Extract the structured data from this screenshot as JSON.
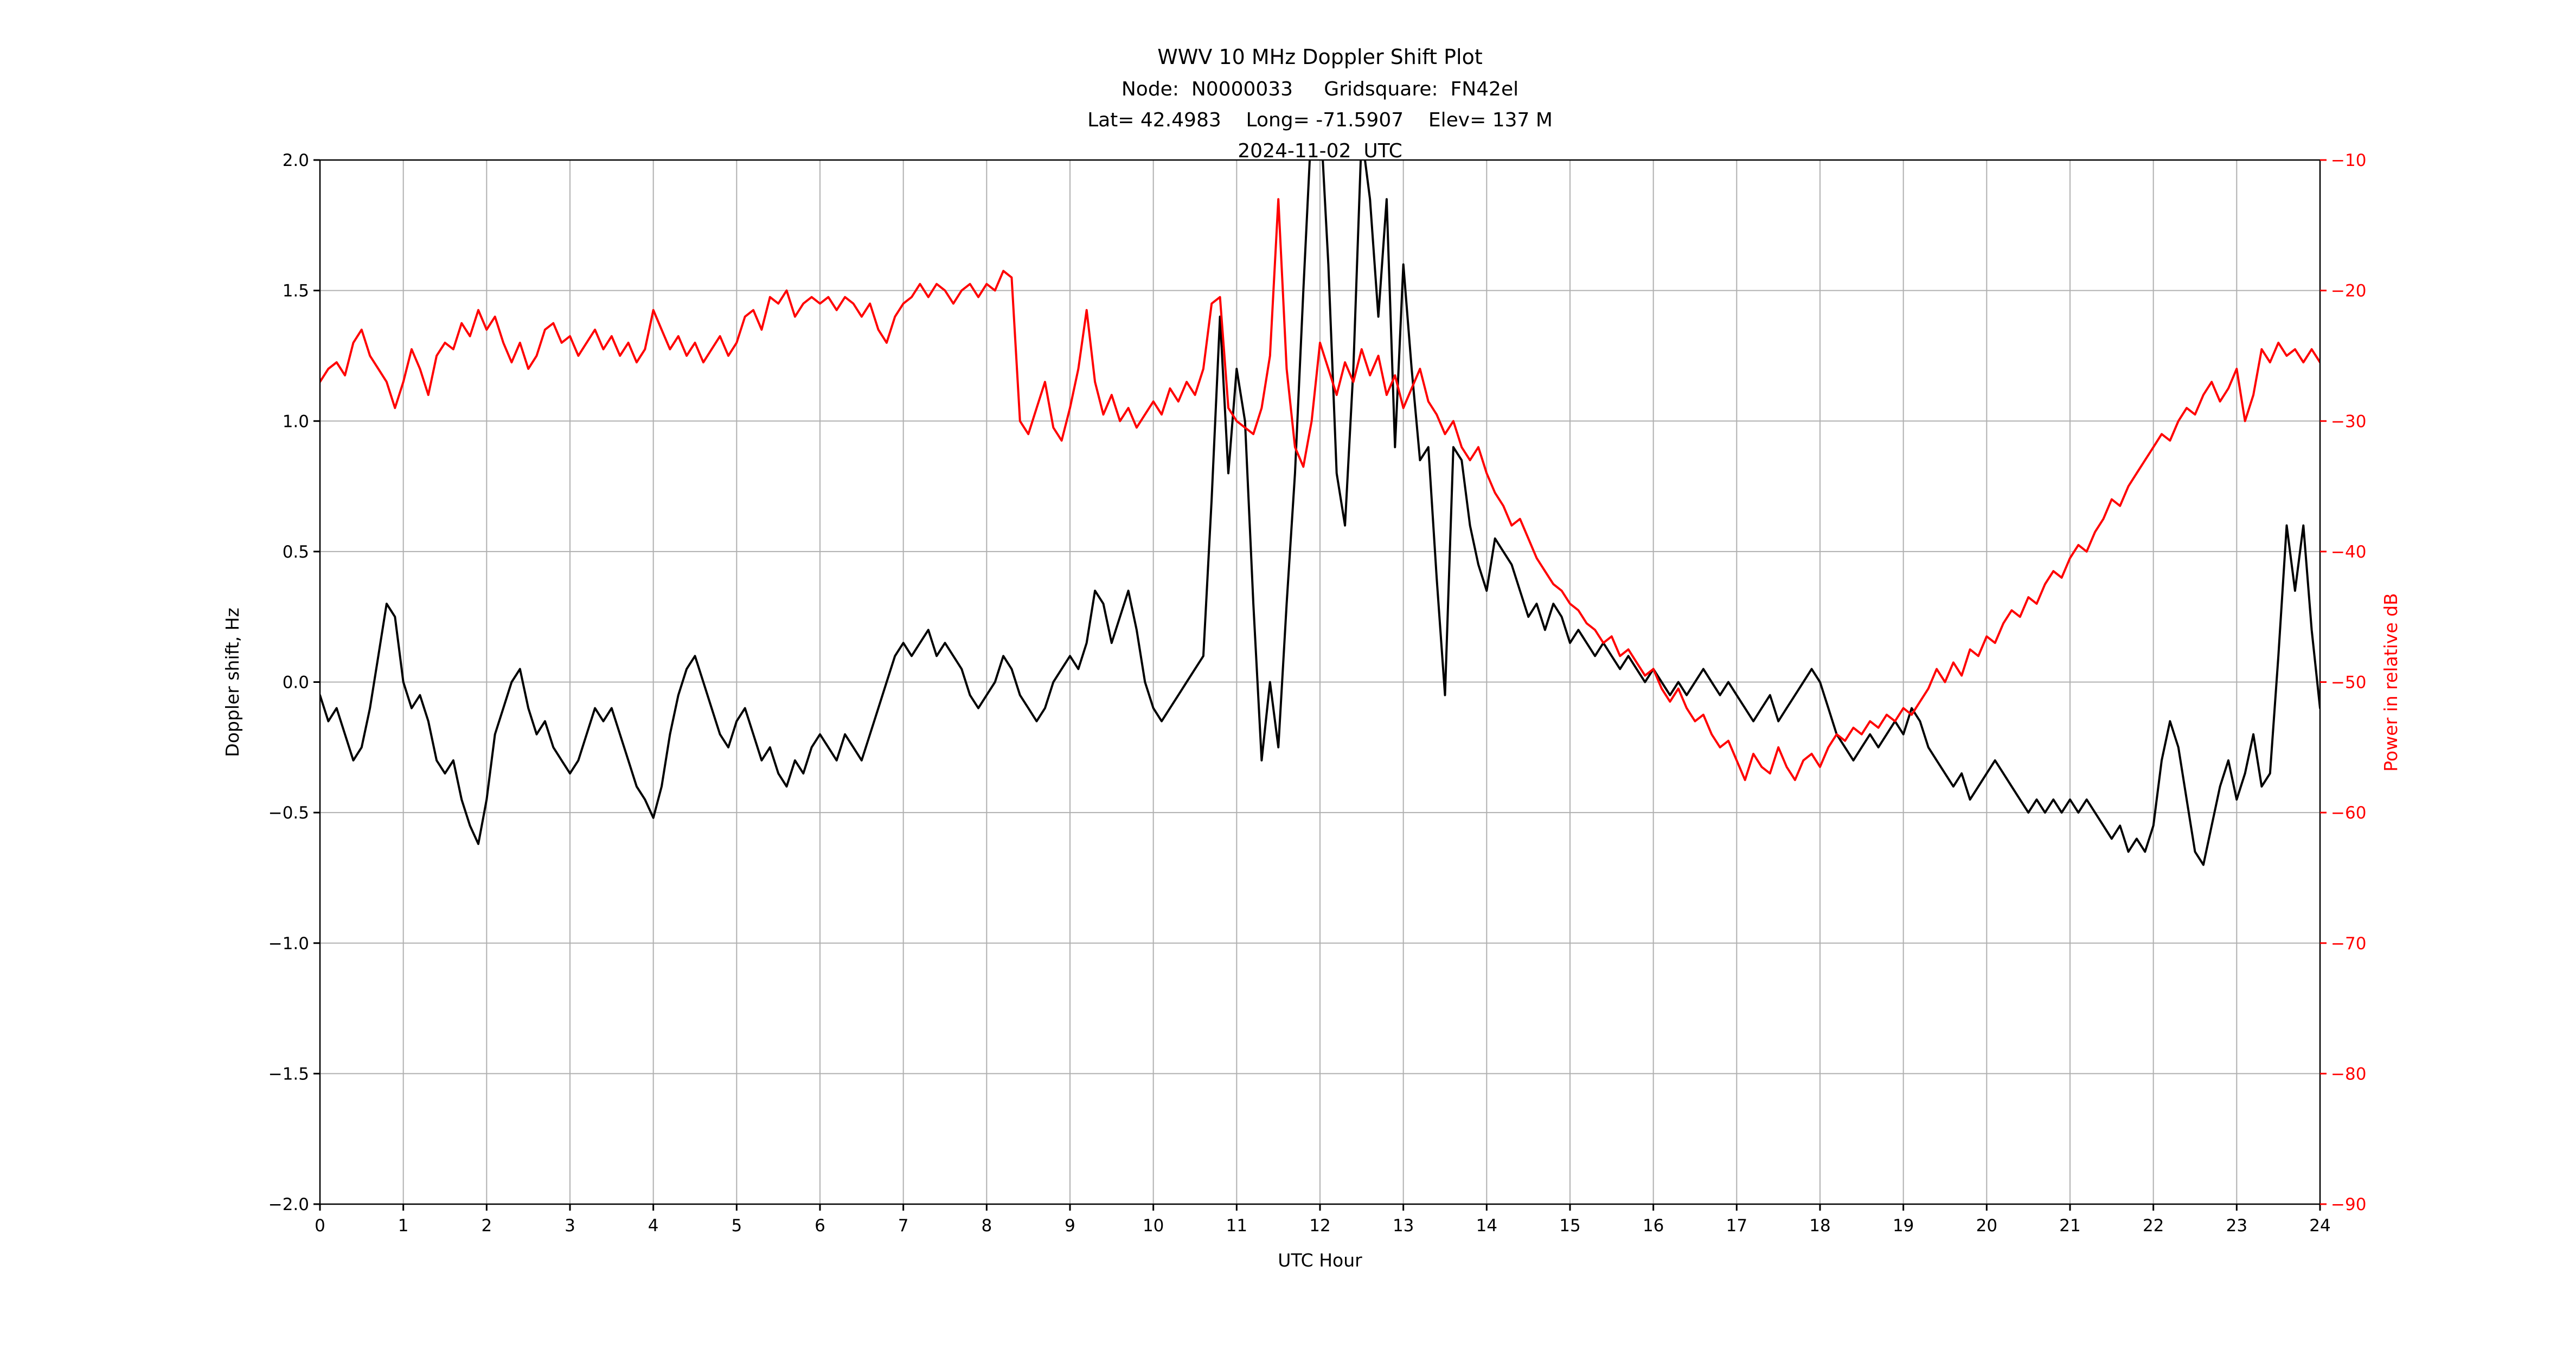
{
  "header": {
    "node_line": "Node:  N0000033     Gridsquare:  FN42el",
    "location_line": "Lat= 42.4983    Long= -71.5907    Elev= 137 M",
    "date_line": "2024-11-02  UTC"
  },
  "chart_data": {
    "type": "line",
    "title": "WWV 10 MHz Doppler Shift Plot",
    "xlabel": "UTC Hour",
    "xlim": [
      0,
      24
    ],
    "x_ticks": [
      0,
      1,
      2,
      3,
      4,
      5,
      6,
      7,
      8,
      9,
      10,
      11,
      12,
      13,
      14,
      15,
      16,
      17,
      18,
      19,
      20,
      21,
      22,
      23,
      24
    ],
    "x_start": 0,
    "x_step": 0.1,
    "grid": true,
    "legend": "none",
    "background_color": "#ffffff",
    "grid_color": "#b0b0b0",
    "left_axis": {
      "label": "Doppler shift, Hz",
      "ylim": [
        -2.0,
        2.0
      ],
      "ticks": [
        -2.0,
        -1.5,
        -1.0,
        -0.5,
        0.0,
        0.5,
        1.0,
        1.5,
        2.0
      ],
      "color": "#000000"
    },
    "right_axis": {
      "label": "Power in relative dB",
      "ylim": [
        -90,
        -10
      ],
      "ticks": [
        -90,
        -80,
        -70,
        -60,
        -50,
        -40,
        -30,
        -20,
        -10
      ],
      "color": "#ff0000"
    },
    "series": [
      {
        "name": "Doppler shift",
        "axis": "left",
        "color": "#000000",
        "values": [
          -0.05,
          -0.15,
          -0.1,
          -0.2,
          -0.3,
          -0.25,
          -0.1,
          0.1,
          0.3,
          0.25,
          0.0,
          -0.1,
          -0.05,
          -0.15,
          -0.3,
          -0.35,
          -0.3,
          -0.45,
          -0.55,
          -0.62,
          -0.45,
          -0.2,
          -0.1,
          0.0,
          0.05,
          -0.1,
          -0.2,
          -0.15,
          -0.25,
          -0.3,
          -0.35,
          -0.3,
          -0.2,
          -0.1,
          -0.15,
          -0.1,
          -0.2,
          -0.3,
          -0.4,
          -0.45,
          -0.52,
          -0.4,
          -0.2,
          -0.05,
          0.05,
          0.1,
          0.0,
          -0.1,
          -0.2,
          -0.25,
          -0.15,
          -0.1,
          -0.2,
          -0.3,
          -0.25,
          -0.35,
          -0.4,
          -0.3,
          -0.35,
          -0.25,
          -0.2,
          -0.25,
          -0.3,
          -0.2,
          -0.25,
          -0.3,
          -0.2,
          -0.1,
          0.0,
          0.1,
          0.15,
          0.1,
          0.15,
          0.2,
          0.1,
          0.15,
          0.1,
          0.05,
          -0.05,
          -0.1,
          -0.05,
          0.0,
          0.1,
          0.05,
          -0.05,
          -0.1,
          -0.15,
          -0.1,
          0.0,
          0.05,
          0.1,
          0.05,
          0.15,
          0.35,
          0.3,
          0.15,
          0.25,
          0.35,
          0.2,
          0.0,
          -0.1,
          -0.15,
          -0.1,
          -0.05,
          0.0,
          0.05,
          0.1,
          0.7,
          1.4,
          0.8,
          1.2,
          1.0,
          0.3,
          -0.3,
          0.0,
          -0.25,
          0.3,
          0.8,
          1.5,
          2.15,
          2.2,
          1.6,
          0.8,
          0.6,
          1.2,
          2.1,
          1.85,
          1.4,
          1.85,
          0.9,
          1.6,
          1.2,
          0.85,
          0.9,
          0.4,
          -0.05,
          0.9,
          0.85,
          0.6,
          0.45,
          0.35,
          0.55,
          0.5,
          0.45,
          0.35,
          0.25,
          0.3,
          0.2,
          0.3,
          0.25,
          0.15,
          0.2,
          0.15,
          0.1,
          0.15,
          0.1,
          0.05,
          0.1,
          0.05,
          0.0,
          0.05,
          0.0,
          -0.05,
          0.0,
          -0.05,
          0.0,
          0.05,
          0.0,
          -0.05,
          0.0,
          -0.05,
          -0.1,
          -0.15,
          -0.1,
          -0.05,
          -0.15,
          -0.1,
          -0.05,
          0.0,
          0.05,
          0.0,
          -0.1,
          -0.2,
          -0.25,
          -0.3,
          -0.25,
          -0.2,
          -0.25,
          -0.2,
          -0.15,
          -0.2,
          -0.1,
          -0.15,
          -0.25,
          -0.3,
          -0.35,
          -0.4,
          -0.35,
          -0.45,
          -0.4,
          -0.35,
          -0.3,
          -0.35,
          -0.4,
          -0.45,
          -0.5,
          -0.45,
          -0.5,
          -0.45,
          -0.5,
          -0.45,
          -0.5,
          -0.45,
          -0.5,
          -0.55,
          -0.6,
          -0.55,
          -0.65,
          -0.6,
          -0.65,
          -0.55,
          -0.3,
          -0.15,
          -0.25,
          -0.45,
          -0.65,
          -0.7,
          -0.55,
          -0.4,
          -0.3,
          -0.45,
          -0.35,
          -0.2,
          -0.4,
          -0.35,
          0.1,
          0.6,
          0.35,
          0.6,
          0.2,
          -0.1
        ]
      },
      {
        "name": "Relative power",
        "axis": "right",
        "color": "#ff0000",
        "values": [
          -27,
          -26,
          -25.5,
          -26.5,
          -24,
          -23,
          -25,
          -26,
          -27,
          -29,
          -27,
          -24.5,
          -26,
          -28,
          -25,
          -24,
          -24.5,
          -22.5,
          -23.5,
          -21.5,
          -23,
          -22,
          -24,
          -25.5,
          -24,
          -26,
          -25,
          -23,
          -22.5,
          -24,
          -23.5,
          -25,
          -24,
          -23,
          -24.5,
          -23.5,
          -25,
          -24,
          -25.5,
          -24.5,
          -21.5,
          -23,
          -24.5,
          -23.5,
          -25,
          -24,
          -25.5,
          -24.5,
          -23.5,
          -25,
          -24,
          -22,
          -21.5,
          -23,
          -20.5,
          -21,
          -20,
          -22,
          -21,
          -20.5,
          -21,
          -20.5,
          -21.5,
          -20.5,
          -21,
          -22,
          -21,
          -23,
          -24,
          -22,
          -21,
          -20.5,
          -19.5,
          -20.5,
          -19.5,
          -20,
          -21,
          -20,
          -19.5,
          -20.5,
          -19.5,
          -20,
          -18.5,
          -19,
          -30,
          -31,
          -29,
          -27,
          -30.5,
          -31.5,
          -29,
          -26,
          -21.5,
          -27,
          -29.5,
          -28,
          -30,
          -29,
          -30.5,
          -29.5,
          -28.5,
          -29.5,
          -27.5,
          -28.5,
          -27,
          -28,
          -26,
          -21,
          -20.5,
          -29,
          -30,
          -30.5,
          -31,
          -29,
          -25,
          -13,
          -26,
          -32,
          -33.5,
          -30,
          -24,
          -26,
          -28,
          -25.5,
          -27,
          -24.5,
          -26.5,
          -25,
          -28,
          -26.5,
          -29,
          -27.5,
          -26,
          -28.5,
          -29.5,
          -31,
          -30,
          -32,
          -33,
          -32,
          -34,
          -35.5,
          -36.5,
          -38,
          -37.5,
          -39,
          -40.5,
          -41.5,
          -42.5,
          -43,
          -44,
          -44.5,
          -45.5,
          -46,
          -47,
          -46.5,
          -48,
          -47.5,
          -48.5,
          -49.5,
          -49,
          -50.5,
          -51.5,
          -50.5,
          -52,
          -53,
          -52.5,
          -54,
          -55,
          -54.5,
          -56,
          -57.5,
          -55.5,
          -56.5,
          -57,
          -55,
          -56.5,
          -57.5,
          -56,
          -55.5,
          -56.5,
          -55,
          -54,
          -54.5,
          -53.5,
          -54,
          -53,
          -53.5,
          -52.5,
          -53,
          -52,
          -52.5,
          -51.5,
          -50.5,
          -49,
          -50,
          -48.5,
          -49.5,
          -47.5,
          -48,
          -46.5,
          -47,
          -45.5,
          -44.5,
          -45,
          -43.5,
          -44,
          -42.5,
          -41.5,
          -42,
          -40.5,
          -39.5,
          -40,
          -38.5,
          -37.5,
          -36,
          -36.5,
          -35,
          -34,
          -33,
          -32,
          -31,
          -31.5,
          -30,
          -29,
          -29.5,
          -28,
          -27,
          -28.5,
          -27.5,
          -26,
          -30,
          -28,
          -24.5,
          -25.5,
          -24,
          -25,
          -24.5,
          -25.5,
          -24.5,
          -25.5
        ]
      }
    ]
  }
}
